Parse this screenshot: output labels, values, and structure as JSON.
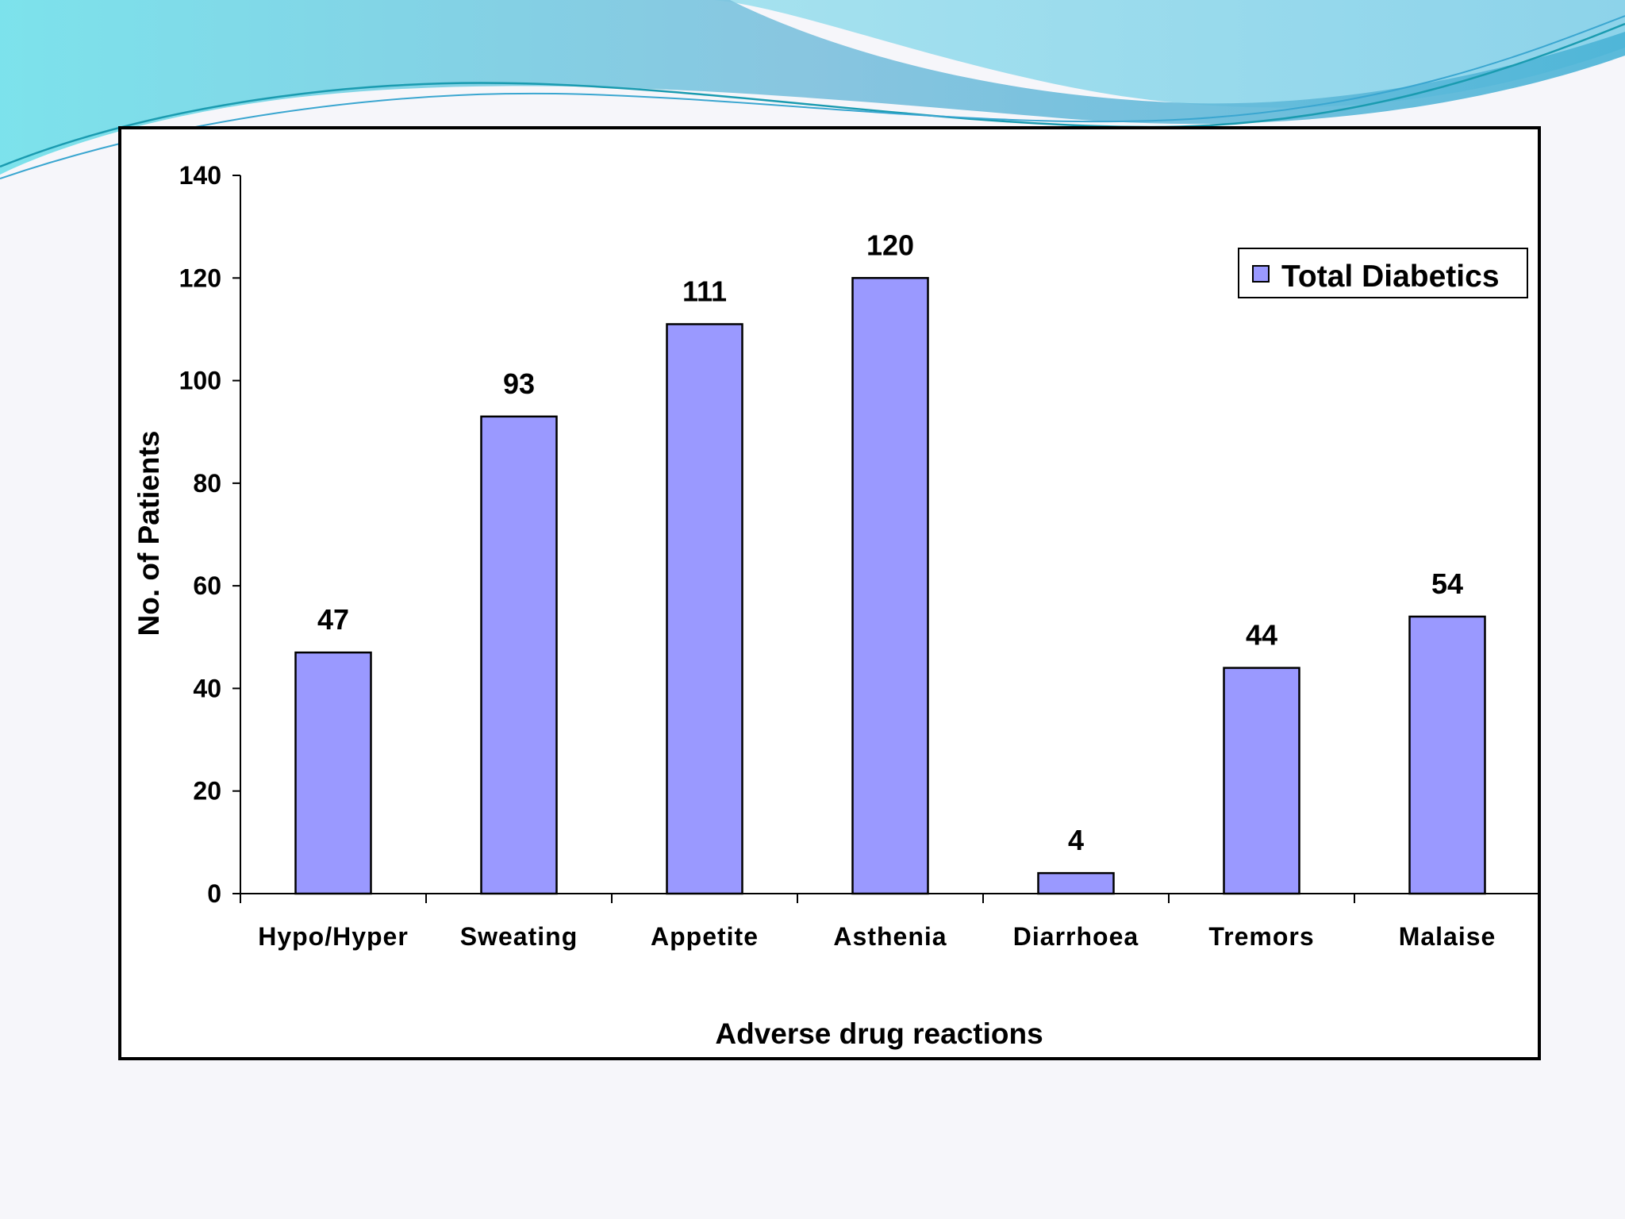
{
  "colors": {
    "bar_fill": "#9a99ff",
    "bar_stroke": "#000000",
    "wave_light": "#8fd6e8",
    "wave_dark": "#2a9fc9"
  },
  "chart_data": {
    "type": "bar",
    "categories": [
      "Hypo/Hyper",
      "Sweating",
      "Appetite",
      "Asthenia",
      "Diarrhoea",
      "Tremors",
      "Malaise"
    ],
    "series": [
      {
        "name": "Total Diabetics",
        "values": [
          47,
          93,
          111,
          120,
          4,
          44,
          54
        ]
      }
    ],
    "title": "",
    "xlabel": "Adverse drug reactions",
    "ylabel": "No. of Patients",
    "ylim": [
      0,
      140
    ],
    "yticks": [
      0,
      20,
      40,
      60,
      80,
      100,
      120,
      140
    ],
    "grid": false,
    "legend_position": "top-right"
  }
}
